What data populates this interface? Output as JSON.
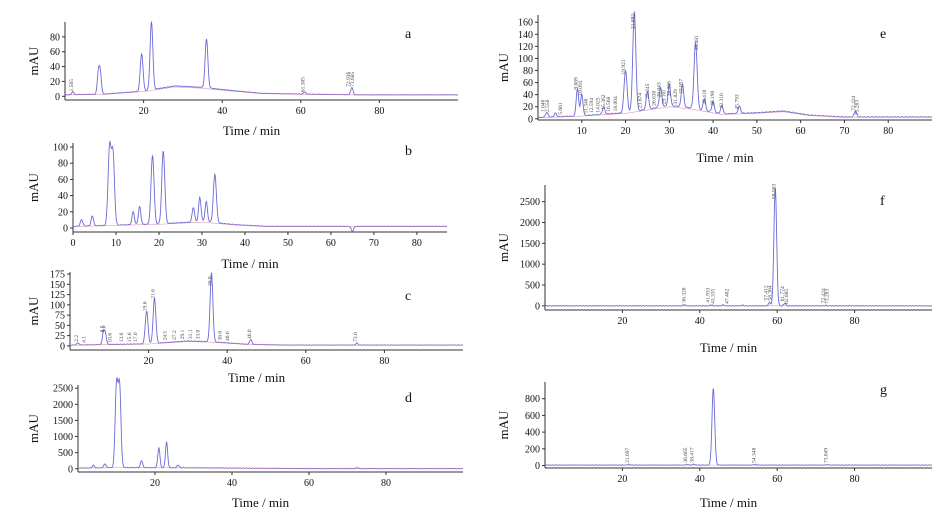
{
  "chart_data": [
    {
      "id": "a",
      "type": "line",
      "letter": "a",
      "xlabel": "Time / min",
      "ylabel": "mAU",
      "xlim": [
        0,
        100
      ],
      "ylim": [
        -5,
        100
      ],
      "xticks": [
        20,
        40,
        60,
        80
      ],
      "yticks": [
        0,
        20,
        40,
        60,
        80
      ],
      "baseline": [
        [
          0,
          2
        ],
        [
          10,
          3
        ],
        [
          20,
          7
        ],
        [
          28,
          14
        ],
        [
          35,
          12
        ],
        [
          42,
          8
        ],
        [
          50,
          4
        ],
        [
          60,
          3
        ],
        [
          75,
          2
        ],
        [
          100,
          2
        ]
      ],
      "peaks": [
        [
          2,
          4
        ],
        [
          8.5,
          30
        ],
        [
          9,
          27
        ],
        [
          19.5,
          51
        ],
        [
          22,
          92
        ],
        [
          36,
          66
        ],
        [
          61,
          3
        ],
        [
          73,
          10
        ]
      ],
      "peak_labels": [
        {
          "t": 2,
          "text": "1.565"
        },
        {
          "t": 61,
          "text": "61.305"
        },
        {
          "t": 72.5,
          "text": "72.936"
        },
        {
          "t": 73.5,
          "text": "73.685"
        }
      ]
    },
    {
      "id": "b",
      "type": "line",
      "letter": "b",
      "xlabel": "Time / min",
      "ylabel": "mAU",
      "xlim": [
        0,
        87
      ],
      "ylim": [
        -5,
        105
      ],
      "xticks": [
        0,
        10,
        20,
        30,
        40,
        50,
        60,
        70,
        80
      ],
      "yticks": [
        0,
        20,
        40,
        60,
        80,
        100
      ],
      "baseline": [
        [
          0,
          2
        ],
        [
          20,
          5
        ],
        [
          30,
          8
        ],
        [
          38,
          4
        ],
        [
          45,
          2
        ],
        [
          87,
          2
        ]
      ],
      "peaks": [
        [
          2,
          8
        ],
        [
          4.5,
          12
        ],
        [
          8.5,
          95
        ],
        [
          9.3,
          88
        ],
        [
          14,
          16
        ],
        [
          15.5,
          22
        ],
        [
          18.5,
          85
        ],
        [
          21,
          90
        ],
        [
          28,
          18
        ],
        [
          29.5,
          30
        ],
        [
          31,
          25
        ],
        [
          33,
          60
        ],
        [
          65,
          -6
        ]
      ],
      "peak_labels": []
    },
    {
      "id": "c",
      "type": "line",
      "letter": "c",
      "xlabel": "Time / min",
      "ylabel": "mAU",
      "xlim": [
        0,
        100
      ],
      "ylim": [
        -10,
        180
      ],
      "xticks": [
        20,
        40,
        60,
        80
      ],
      "yticks": [
        0,
        25,
        50,
        75,
        100,
        125,
        150,
        175
      ],
      "baseline": [
        [
          0,
          2
        ],
        [
          20,
          5
        ],
        [
          30,
          12
        ],
        [
          36,
          10
        ],
        [
          45,
          4
        ],
        [
          55,
          2
        ],
        [
          100,
          2
        ]
      ],
      "peaks": [
        [
          2,
          5
        ],
        [
          8.5,
          28
        ],
        [
          9,
          25
        ],
        [
          19.5,
          80
        ],
        [
          21.5,
          110
        ],
        [
          36,
          168
        ],
        [
          46,
          12
        ],
        [
          73,
          5
        ]
      ],
      "peak_labels": [
        {
          "t": 2,
          "text": "2.2"
        },
        {
          "t": 4,
          "text": "4.1"
        },
        {
          "t": 8.5,
          "text": "8.5"
        },
        {
          "t": 9,
          "text": "9.0"
        },
        {
          "t": 10.5,
          "text": "10.6"
        },
        {
          "t": 13.5,
          "text": "13.6"
        },
        {
          "t": 15.5,
          "text": "15.6"
        },
        {
          "t": 17,
          "text": "17.0"
        },
        {
          "t": 19.5,
          "text": "19.6"
        },
        {
          "t": 21.5,
          "text": "21.6"
        },
        {
          "t": 24.5,
          "text": "24.5"
        },
        {
          "t": 27,
          "text": "27.2"
        },
        {
          "t": 29,
          "text": "29.1"
        },
        {
          "t": 31,
          "text": "31.1"
        },
        {
          "t": 33,
          "text": "33.0"
        },
        {
          "t": 36,
          "text": "36.0"
        },
        {
          "t": 38.5,
          "text": "38.6"
        },
        {
          "t": 40.5,
          "text": "40.6"
        },
        {
          "t": 46,
          "text": "46.0"
        },
        {
          "t": 73,
          "text": "73.0"
        }
      ]
    },
    {
      "id": "d",
      "type": "line",
      "letter": "d",
      "xlabel": "Time / min",
      "ylabel": "mAU",
      "xlim": [
        0,
        100
      ],
      "ylim": [
        -100,
        2600
      ],
      "xticks": [
        20,
        40,
        60,
        80
      ],
      "yticks": [
        0,
        500,
        1000,
        1500,
        2000,
        2500
      ],
      "baseline": [
        [
          0,
          20
        ],
        [
          10,
          40
        ],
        [
          30,
          30
        ],
        [
          60,
          5
        ],
        [
          100,
          5
        ]
      ],
      "peaks": [
        [
          4,
          80
        ],
        [
          7,
          120
        ],
        [
          10,
          2550
        ],
        [
          10.8,
          2520
        ],
        [
          16.5,
          220
        ],
        [
          21,
          620
        ],
        [
          23,
          800
        ],
        [
          26,
          90
        ],
        [
          72.5,
          30
        ]
      ],
      "peak_labels": []
    },
    {
      "id": "e",
      "type": "line",
      "letter": "e",
      "xlabel": "Time / min",
      "ylabel": "mAU",
      "xlim": [
        0,
        90
      ],
      "ylim": [
        -2,
        172
      ],
      "xticks": [
        10,
        20,
        30,
        40,
        50,
        60,
        70,
        80
      ],
      "yticks": [
        0,
        20,
        40,
        60,
        80,
        100,
        120,
        140,
        160
      ],
      "baseline": [
        [
          0,
          2
        ],
        [
          10,
          5
        ],
        [
          20,
          10
        ],
        [
          30,
          22
        ],
        [
          35,
          18
        ],
        [
          42,
          8
        ],
        [
          50,
          10
        ],
        [
          56,
          13
        ],
        [
          62,
          6
        ],
        [
          70,
          3
        ],
        [
          90,
          3
        ]
      ],
      "peaks": [
        [
          2,
          8
        ],
        [
          4,
          6
        ],
        [
          9,
          45
        ],
        [
          10,
          35
        ],
        [
          15,
          12
        ],
        [
          20,
          70
        ],
        [
          22,
          165
        ],
        [
          25,
          30
        ],
        [
          28,
          32
        ],
        [
          30,
          34
        ],
        [
          33,
          38
        ],
        [
          36,
          110
        ],
        [
          38,
          20
        ],
        [
          40,
          18
        ],
        [
          42,
          14
        ],
        [
          46,
          12
        ],
        [
          72.5,
          10
        ]
      ],
      "peak_labels": [
        {
          "t": 1.5,
          "text": "1.640"
        },
        {
          "t": 2.5,
          "text": "2.550"
        },
        {
          "t": 5.5,
          "text": "5.661"
        },
        {
          "t": 9,
          "text": "9.089"
        },
        {
          "t": 10,
          "text": "10.093"
        },
        {
          "t": 11.3,
          "text": "11.340"
        },
        {
          "t": 12.6,
          "text": "12.594"
        },
        {
          "t": 14,
          "text": "14.025"
        },
        {
          "t": 15.3,
          "text": "15.362"
        },
        {
          "t": 16.5,
          "text": "16.568"
        },
        {
          "t": 18,
          "text": "18.004"
        },
        {
          "t": 19.9,
          "text": "19.921"
        },
        {
          "t": 22,
          "text": "21.892"
        },
        {
          "t": 23.6,
          "text": "23.674"
        },
        {
          "t": 25.3,
          "text": "25.245"
        },
        {
          "t": 26.8,
          "text": "26.830"
        },
        {
          "t": 28,
          "text": "28.043"
        },
        {
          "t": 29.1,
          "text": "29.101"
        },
        {
          "t": 30.3,
          "text": "30.266"
        },
        {
          "t": 31.8,
          "text": "31.829"
        },
        {
          "t": 33,
          "text": "33.057"
        },
        {
          "t": 36.5,
          "text": "36.481"
        },
        {
          "t": 38.4,
          "text": "38.410"
        },
        {
          "t": 40.2,
          "text": "40.190"
        },
        {
          "t": 42.3,
          "text": "42.310"
        },
        {
          "t": 45.8,
          "text": "45.793"
        },
        {
          "t": 72.4,
          "text": "72.424"
        },
        {
          "t": 73.2,
          "text": "73.203"
        }
      ]
    },
    {
      "id": "f",
      "type": "line",
      "letter": "f",
      "xlabel": "Time / min",
      "ylabel": "mAU",
      "xlim": [
        0,
        100
      ],
      "ylim": [
        -100,
        2900
      ],
      "xticks": [
        20,
        40,
        60,
        80
      ],
      "yticks": [
        0,
        500,
        1000,
        1500,
        2000,
        2500
      ],
      "baseline": [
        [
          0,
          0
        ],
        [
          100,
          0
        ]
      ],
      "peaks": [
        [
          36,
          30
        ],
        [
          43,
          25
        ],
        [
          46,
          20
        ],
        [
          51,
          15
        ],
        [
          58,
          80
        ],
        [
          59.5,
          2850
        ],
        [
          62,
          60
        ],
        [
          72.5,
          10
        ]
      ],
      "peak_labels": [
        {
          "t": 36.3,
          "text": "36.328"
        },
        {
          "t": 42.5,
          "text": "41.933"
        },
        {
          "t": 43.8,
          "text": "43.335"
        },
        {
          "t": 47.4,
          "text": "47.402"
        },
        {
          "t": 57.5,
          "text": "57.412"
        },
        {
          "t": 58.5,
          "text": "58.364"
        },
        {
          "t": 59.6,
          "text": "59.563"
        },
        {
          "t": 61.8,
          "text": "61.774"
        },
        {
          "t": 62.8,
          "text": "62.885"
        },
        {
          "t": 72.4,
          "text": "72.424"
        },
        {
          "t": 73.2,
          "text": "73.203"
        }
      ]
    },
    {
      "id": "g",
      "type": "line",
      "letter": "g",
      "xlabel": "Time / min",
      "ylabel": "mAU",
      "xlim": [
        0,
        100
      ],
      "ylim": [
        -30,
        1000
      ],
      "xticks": [
        20,
        40,
        60,
        80
      ],
      "yticks": [
        0,
        200,
        400,
        600,
        800
      ],
      "baseline": [
        [
          0,
          5
        ],
        [
          100,
          5
        ]
      ],
      "peaks": [
        [
          21.7,
          8
        ],
        [
          36.7,
          10
        ],
        [
          38.4,
          12
        ],
        [
          43.5,
          920
        ],
        [
          54.3,
          8
        ],
        [
          73,
          6
        ]
      ],
      "peak_labels": [
        {
          "t": 21.697,
          "text": "21.697"
        },
        {
          "t": 36.665,
          "text": "36.665"
        },
        {
          "t": 38.417,
          "text": "38.417"
        },
        {
          "t": 54.348,
          "text": "54.348"
        },
        {
          "t": 73.049,
          "text": "73.049"
        }
      ]
    }
  ]
}
